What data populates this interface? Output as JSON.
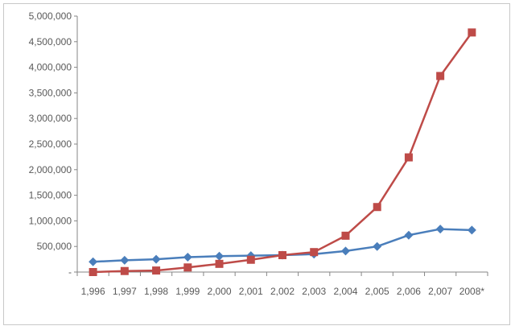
{
  "chart_data": {
    "type": "line",
    "categories": [
      "1,996",
      "1,997",
      "1,998",
      "1,999",
      "2,000",
      "2,001",
      "2,002",
      "2,003",
      "2,004",
      "2,005",
      "2,006",
      "2,007",
      "2008*"
    ],
    "y_tick_labels": [
      "-",
      "500,000",
      "1,000,000",
      "1,500,000",
      "2,000,000",
      "2,500,000",
      "3,000,000",
      "3,500,000",
      "4,000,000",
      "4,500,000",
      "5,000,000"
    ],
    "ylim": [
      0,
      5000000
    ],
    "grid": false,
    "legend": "none",
    "series": [
      {
        "color": "#4a7ebb",
        "marker": "diamond",
        "values": [
          200000,
          230000,
          250000,
          290000,
          310000,
          320000,
          330000,
          350000,
          410000,
          500000,
          720000,
          840000,
          820000
        ]
      },
      {
        "color": "#be4b48",
        "marker": "square",
        "values": [
          0,
          20000,
          30000,
          90000,
          160000,
          240000,
          330000,
          390000,
          710000,
          1270000,
          2240000,
          3830000,
          4680000
        ]
      }
    ]
  }
}
